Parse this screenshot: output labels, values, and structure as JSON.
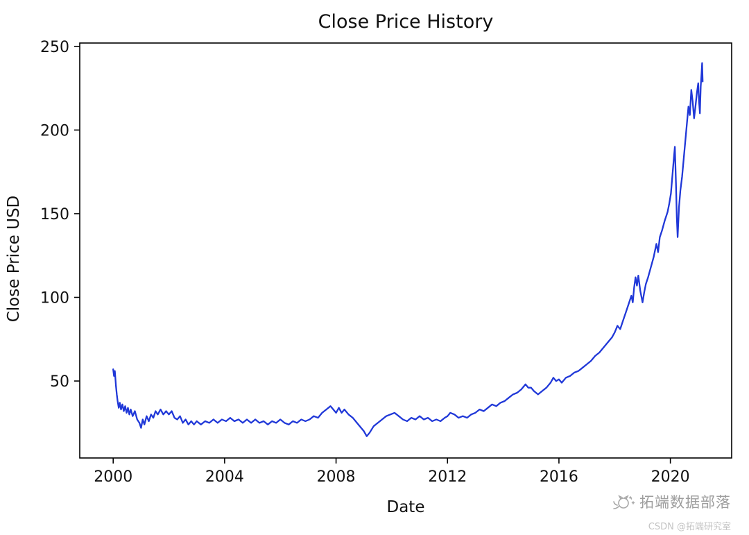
{
  "watermark": {
    "brand": "拓端数据部落",
    "credit": "CSDN @拓端研究室"
  },
  "chart_data": {
    "type": "line",
    "title": "Close Price History",
    "xlabel": "Date",
    "ylabel": "Close Price USD",
    "xlim": [
      1998.8,
      2022.2
    ],
    "ylim": [
      4,
      252
    ],
    "xticks": [
      2000,
      2004,
      2008,
      2012,
      2016,
      2020
    ],
    "yticks": [
      50,
      100,
      150,
      200,
      250
    ],
    "grid": false,
    "legend": null,
    "series": [
      {
        "name": "Close Price",
        "color": "#2038d8",
        "points": [
          [
            2000.0,
            57
          ],
          [
            2000.03,
            53
          ],
          [
            2000.06,
            56
          ],
          [
            2000.1,
            47
          ],
          [
            2000.13,
            42
          ],
          [
            2000.16,
            38
          ],
          [
            2000.2,
            34
          ],
          [
            2000.24,
            37
          ],
          [
            2000.28,
            33
          ],
          [
            2000.33,
            36
          ],
          [
            2000.38,
            32
          ],
          [
            2000.43,
            35
          ],
          [
            2000.48,
            31
          ],
          [
            2000.53,
            34
          ],
          [
            2000.58,
            30
          ],
          [
            2000.63,
            33
          ],
          [
            2000.7,
            29
          ],
          [
            2000.78,
            32
          ],
          [
            2000.86,
            27
          ],
          [
            2000.94,
            25
          ],
          [
            2001.0,
            22
          ],
          [
            2001.06,
            27
          ],
          [
            2001.12,
            24
          ],
          [
            2001.2,
            29
          ],
          [
            2001.28,
            26
          ],
          [
            2001.36,
            30
          ],
          [
            2001.44,
            28
          ],
          [
            2001.52,
            32
          ],
          [
            2001.6,
            30
          ],
          [
            2001.7,
            33
          ],
          [
            2001.8,
            30
          ],
          [
            2001.9,
            32
          ],
          [
            2002.0,
            30
          ],
          [
            2002.1,
            32
          ],
          [
            2002.2,
            28
          ],
          [
            2002.3,
            27
          ],
          [
            2002.4,
            29
          ],
          [
            2002.5,
            25
          ],
          [
            2002.6,
            27
          ],
          [
            2002.7,
            24
          ],
          [
            2002.8,
            26
          ],
          [
            2002.9,
            24
          ],
          [
            2003.0,
            26
          ],
          [
            2003.15,
            24
          ],
          [
            2003.3,
            26
          ],
          [
            2003.45,
            25
          ],
          [
            2003.6,
            27
          ],
          [
            2003.75,
            25
          ],
          [
            2003.9,
            27
          ],
          [
            2004.05,
            26
          ],
          [
            2004.2,
            28
          ],
          [
            2004.35,
            26
          ],
          [
            2004.5,
            27
          ],
          [
            2004.65,
            25
          ],
          [
            2004.8,
            27
          ],
          [
            2004.95,
            25
          ],
          [
            2005.1,
            27
          ],
          [
            2005.25,
            25
          ],
          [
            2005.4,
            26
          ],
          [
            2005.55,
            24
          ],
          [
            2005.7,
            26
          ],
          [
            2005.85,
            25
          ],
          [
            2006.0,
            27
          ],
          [
            2006.15,
            25
          ],
          [
            2006.3,
            24
          ],
          [
            2006.45,
            26
          ],
          [
            2006.6,
            25
          ],
          [
            2006.75,
            27
          ],
          [
            2006.9,
            26
          ],
          [
            2007.05,
            27
          ],
          [
            2007.2,
            29
          ],
          [
            2007.35,
            28
          ],
          [
            2007.5,
            31
          ],
          [
            2007.65,
            33
          ],
          [
            2007.8,
            35
          ],
          [
            2007.9,
            33
          ],
          [
            2008.0,
            31
          ],
          [
            2008.1,
            34
          ],
          [
            2008.2,
            31
          ],
          [
            2008.3,
            33
          ],
          [
            2008.45,
            30
          ],
          [
            2008.6,
            28
          ],
          [
            2008.75,
            25
          ],
          [
            2008.9,
            22
          ],
          [
            2009.0,
            20
          ],
          [
            2009.1,
            17
          ],
          [
            2009.2,
            19
          ],
          [
            2009.35,
            23
          ],
          [
            2009.5,
            25
          ],
          [
            2009.65,
            27
          ],
          [
            2009.8,
            29
          ],
          [
            2009.95,
            30
          ],
          [
            2010.1,
            31
          ],
          [
            2010.25,
            29
          ],
          [
            2010.4,
            27
          ],
          [
            2010.55,
            26
          ],
          [
            2010.7,
            28
          ],
          [
            2010.85,
            27
          ],
          [
            2011.0,
            29
          ],
          [
            2011.15,
            27
          ],
          [
            2011.3,
            28
          ],
          [
            2011.45,
            26
          ],
          [
            2011.6,
            27
          ],
          [
            2011.75,
            26
          ],
          [
            2011.9,
            28
          ],
          [
            2012.0,
            29
          ],
          [
            2012.1,
            31
          ],
          [
            2012.25,
            30
          ],
          [
            2012.4,
            28
          ],
          [
            2012.55,
            29
          ],
          [
            2012.7,
            28
          ],
          [
            2012.85,
            30
          ],
          [
            2013.0,
            31
          ],
          [
            2013.15,
            33
          ],
          [
            2013.3,
            32
          ],
          [
            2013.45,
            34
          ],
          [
            2013.6,
            36
          ],
          [
            2013.75,
            35
          ],
          [
            2013.9,
            37
          ],
          [
            2014.05,
            38
          ],
          [
            2014.2,
            40
          ],
          [
            2014.35,
            42
          ],
          [
            2014.5,
            43
          ],
          [
            2014.65,
            45
          ],
          [
            2014.8,
            48
          ],
          [
            2014.9,
            46
          ],
          [
            2015.0,
            46
          ],
          [
            2015.1,
            44
          ],
          [
            2015.25,
            42
          ],
          [
            2015.4,
            44
          ],
          [
            2015.55,
            46
          ],
          [
            2015.7,
            49
          ],
          [
            2015.8,
            52
          ],
          [
            2015.9,
            50
          ],
          [
            2016.0,
            51
          ],
          [
            2016.1,
            49
          ],
          [
            2016.25,
            52
          ],
          [
            2016.4,
            53
          ],
          [
            2016.55,
            55
          ],
          [
            2016.7,
            56
          ],
          [
            2016.85,
            58
          ],
          [
            2017.0,
            60
          ],
          [
            2017.15,
            62
          ],
          [
            2017.3,
            65
          ],
          [
            2017.45,
            67
          ],
          [
            2017.6,
            70
          ],
          [
            2017.75,
            73
          ],
          [
            2017.9,
            76
          ],
          [
            2018.0,
            79
          ],
          [
            2018.1,
            83
          ],
          [
            2018.2,
            81
          ],
          [
            2018.3,
            86
          ],
          [
            2018.4,
            91
          ],
          [
            2018.5,
            96
          ],
          [
            2018.6,
            101
          ],
          [
            2018.65,
            97
          ],
          [
            2018.7,
            106
          ],
          [
            2018.75,
            112
          ],
          [
            2018.8,
            107
          ],
          [
            2018.85,
            113
          ],
          [
            2018.92,
            104
          ],
          [
            2019.0,
            97
          ],
          [
            2019.06,
            103
          ],
          [
            2019.12,
            108
          ],
          [
            2019.2,
            112
          ],
          [
            2019.3,
            118
          ],
          [
            2019.4,
            124
          ],
          [
            2019.5,
            132
          ],
          [
            2019.56,
            127
          ],
          [
            2019.62,
            136
          ],
          [
            2019.7,
            140
          ],
          [
            2019.8,
            146
          ],
          [
            2019.9,
            151
          ],
          [
            2019.96,
            156
          ],
          [
            2020.02,
            162
          ],
          [
            2020.07,
            172
          ],
          [
            2020.12,
            182
          ],
          [
            2020.16,
            190
          ],
          [
            2020.2,
            168
          ],
          [
            2020.23,
            148
          ],
          [
            2020.26,
            136
          ],
          [
            2020.31,
            154
          ],
          [
            2020.36,
            164
          ],
          [
            2020.42,
            172
          ],
          [
            2020.48,
            183
          ],
          [
            2020.54,
            194
          ],
          [
            2020.6,
            205
          ],
          [
            2020.65,
            214
          ],
          [
            2020.7,
            209
          ],
          [
            2020.75,
            224
          ],
          [
            2020.8,
            217
          ],
          [
            2020.85,
            207
          ],
          [
            2020.9,
            214
          ],
          [
            2020.95,
            222
          ],
          [
            2021.0,
            228
          ],
          [
            2021.03,
            217
          ],
          [
            2021.06,
            210
          ],
          [
            2021.09,
            226
          ],
          [
            2021.12,
            234
          ],
          [
            2021.14,
            240
          ],
          [
            2021.16,
            229
          ]
        ]
      }
    ]
  }
}
